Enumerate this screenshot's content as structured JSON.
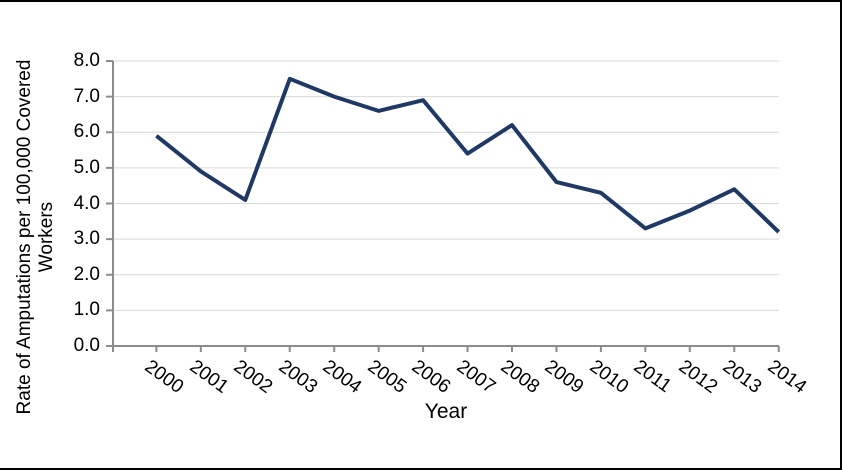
{
  "figure": {
    "background": "#FFFFFF",
    "border_color": "#000000"
  },
  "chart_data": {
    "type": "line",
    "title": "",
    "xlabel": "Year",
    "ylabel": "Rate of Amputations per 100,000 Covered Workers",
    "x": [
      "2000",
      "2001",
      "2002",
      "2003",
      "2004",
      "2005",
      "2006",
      "2007",
      "2008",
      "2009",
      "2010",
      "2011",
      "2012",
      "2013",
      "2014"
    ],
    "series": [
      {
        "name": "Rate of Amputations per 100,000 Covered Workers",
        "values": [
          5.9,
          4.9,
          4.1,
          7.5,
          7.0,
          6.6,
          6.9,
          5.4,
          6.2,
          4.6,
          4.3,
          3.3,
          3.8,
          4.4,
          3.2
        ]
      }
    ],
    "ylim": [
      0,
      8
    ],
    "ytick_step": 1,
    "ytick_labels": [
      "0.0",
      "1.0",
      "2.0",
      "3.0",
      "4.0",
      "5.0",
      "6.0",
      "7.0",
      "8.0"
    ],
    "grid": true,
    "legend_position": "none",
    "line_color": "#1F3864",
    "gridline_color": "#D9D9D9",
    "axis_color": "#8C8C8C",
    "text_color": "#000000"
  }
}
